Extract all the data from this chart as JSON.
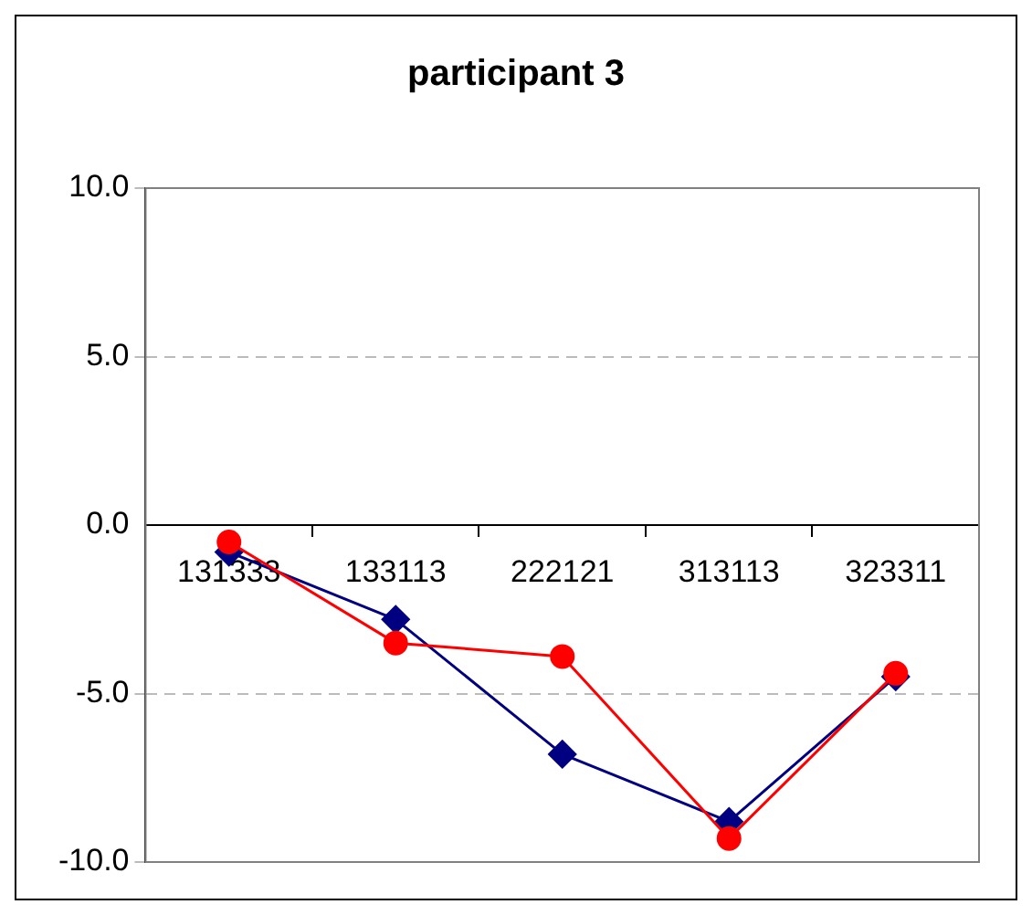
{
  "chart_data": {
    "type": "line",
    "title": "participant 3",
    "categories": [
      "131333",
      "133113",
      "222121",
      "313113",
      "323311"
    ],
    "series": [
      {
        "color": "#000080",
        "marker": "diamond",
        "values": [
          -0.8,
          -2.8,
          -6.8,
          -8.8,
          -4.5
        ]
      },
      {
        "color": "#ff0000",
        "marker": "circle",
        "values": [
          -0.5,
          -3.5,
          -3.9,
          -9.3,
          -4.4
        ]
      }
    ],
    "ylim": [
      -10,
      10
    ],
    "yticks": [
      {
        "value": -10,
        "label": "-10.0"
      },
      {
        "value": -5,
        "label": "-5.0"
      },
      {
        "value": 0,
        "label": "0.0"
      },
      {
        "value": 5,
        "label": "5.0"
      },
      {
        "value": 10,
        "label": "10.0"
      }
    ],
    "grid": "y",
    "legend": false
  }
}
